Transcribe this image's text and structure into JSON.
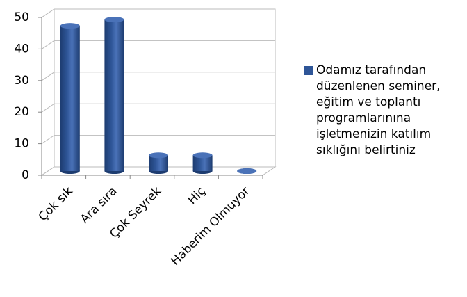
{
  "chart_data": {
    "type": "bar",
    "categories": [
      "Çok sık",
      "Ara sıra",
      "Çok Seyrek",
      "Hiç",
      "Haberim Olmuyor"
    ],
    "series": [
      {
        "name": "Odamız tarafından düzenlenen seminer, eğitim ve toplantı programlarınına işletmenizin katılım sıklığını belirtiniz",
        "color": "#2e5597",
        "values": [
          46,
          48,
          5,
          5,
          0
        ]
      }
    ],
    "ylim": [
      0,
      50
    ],
    "yticks": [
      0,
      10,
      20,
      30,
      40,
      50
    ],
    "grid": true,
    "legend": "right"
  }
}
